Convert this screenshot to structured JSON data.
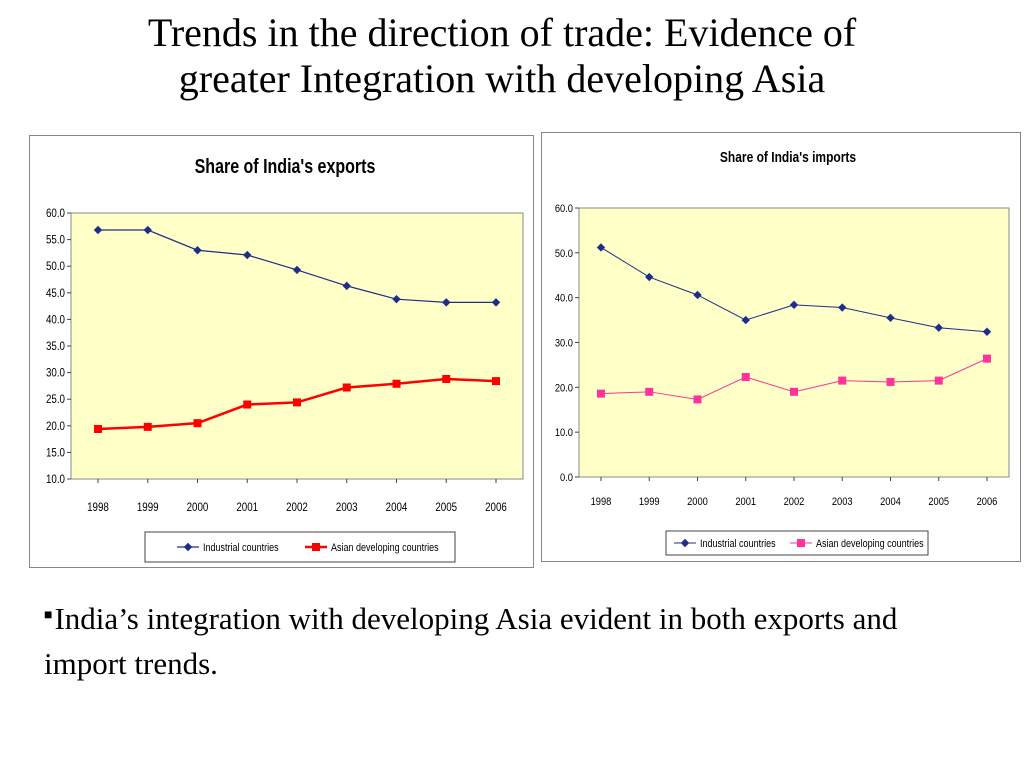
{
  "slide": {
    "title_line1": "Trends in the direction of trade: Evidence of",
    "title_line2": "greater Integration with developing Asia",
    "bullet_marker": "■",
    "bullet_text": "India’s integration with developing Asia evident in both exports and import trends."
  },
  "chart_data": [
    {
      "type": "line",
      "title": "Share of India's exports",
      "categories": [
        "1998",
        "1999",
        "2000",
        "2001",
        "2002",
        "2003",
        "2004",
        "2005",
        "2006"
      ],
      "series": [
        {
          "name": "Industrial countries",
          "values": [
            56.8,
            56.8,
            53.0,
            52.1,
            49.3,
            46.3,
            43.8,
            43.2,
            43.2
          ],
          "color": "#1f2d8a",
          "marker": "diamond"
        },
        {
          "name": "Asian developing countries",
          "values": [
            19.4,
            19.8,
            20.5,
            24.0,
            24.4,
            27.2,
            27.9,
            28.8,
            28.4
          ],
          "color": "#ff0000",
          "marker": "square"
        }
      ],
      "ylim": [
        10.0,
        60.0
      ],
      "yticks": [
        "10.0",
        "15.0",
        "20.0",
        "25.0",
        "30.0",
        "35.0",
        "40.0",
        "45.0",
        "50.0",
        "55.0",
        "60.0"
      ],
      "plot_background": "#ffffc8",
      "legend_position": "bottom",
      "grid": false
    },
    {
      "type": "line",
      "title": "Share of India's  imports",
      "categories": [
        "1998",
        "1999",
        "2000",
        "2001",
        "2002",
        "2003",
        "2004",
        "2005",
        "2006"
      ],
      "series": [
        {
          "name": "Industrial countries",
          "values": [
            51.2,
            44.6,
            40.6,
            35.0,
            38.4,
            37.8,
            35.5,
            33.3,
            32.4
          ],
          "color": "#1f2d8a",
          "marker": "diamond"
        },
        {
          "name": "Asian developing countries",
          "values": [
            18.6,
            19.0,
            17.3,
            22.3,
            19.0,
            21.5,
            21.2,
            21.5,
            26.4
          ],
          "color": "#ff3399",
          "marker": "square"
        }
      ],
      "ylim": [
        0.0,
        60.0
      ],
      "yticks": [
        "0.0",
        "10.0",
        "20.0",
        "30.0",
        "40.0",
        "50.0",
        "60.0"
      ],
      "plot_background": "#ffffc8",
      "legend_position": "bottom",
      "grid": false
    }
  ]
}
